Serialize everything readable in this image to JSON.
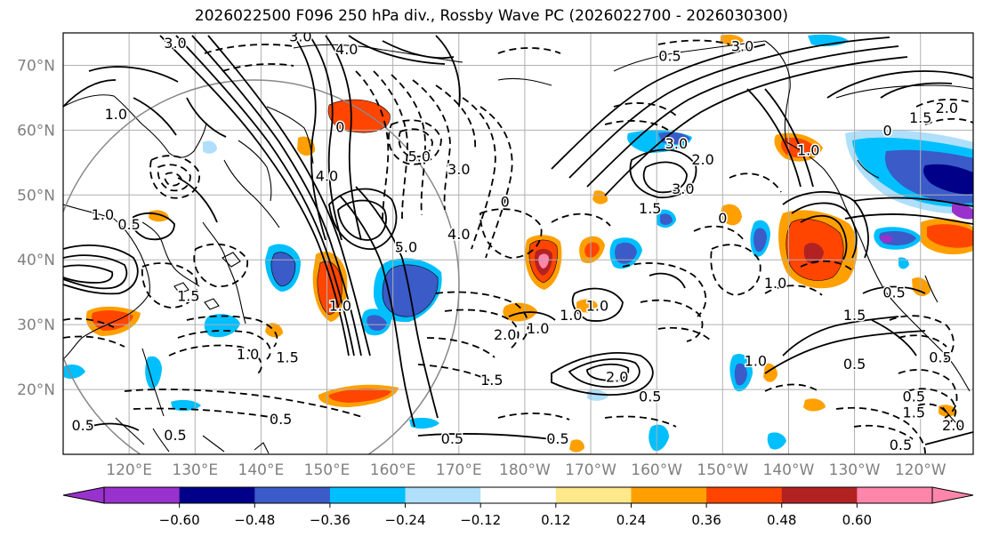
{
  "title": "2026022500 F096 250 hPa div., Rossby Wave PC (2026022700 - 2026030300)",
  "lat_labels": [
    {
      "text": "70°N",
      "lat": 70
    },
    {
      "text": "60°N",
      "lat": 60
    },
    {
      "text": "50°N",
      "lat": 50
    },
    {
      "text": "40°N",
      "lat": 40
    },
    {
      "text": "30°N",
      "lat": 30
    },
    {
      "text": "20°N",
      "lat": 20
    }
  ],
  "lon_labels": [
    {
      "text": "120°E",
      "lon": 120
    },
    {
      "text": "130°E",
      "lon": 130
    },
    {
      "text": "140°E",
      "lon": 140
    },
    {
      "text": "150°E",
      "lon": 150
    },
    {
      "text": "160°E",
      "lon": 160
    },
    {
      "text": "170°E",
      "lon": 170
    },
    {
      "text": "180°W",
      "lon": 180
    },
    {
      "text": "170°W",
      "lon": 190
    },
    {
      "text": "160°W",
      "lon": 200
    },
    {
      "text": "150°W",
      "lon": 210
    },
    {
      "text": "140°W",
      "lon": 220
    },
    {
      "text": "130°W",
      "lon": 230
    },
    {
      "text": "120°W",
      "lon": 240
    }
  ],
  "colorbar": {
    "colors": [
      "#9932cc",
      "#000088",
      "#3a5bc8",
      "#00bfff",
      "#afdffa",
      "#ffffff",
      "#ffe88a",
      "#ffa000",
      "#ff4500",
      "#b22222",
      "#ff85aa"
    ],
    "ticks": [
      "−0.60",
      "−0.48",
      "−0.36",
      "−0.24",
      "−0.12",
      "0.12",
      "0.24",
      "0.36",
      "0.48",
      "0.60"
    ]
  },
  "contour_labels": [
    {
      "text": "3.0",
      "lon": 127,
      "lat": 73.5
    },
    {
      "text": "3.0",
      "lon": 146,
      "lat": 74.5
    },
    {
      "text": "4.0",
      "lon": 153,
      "lat": 72.5
    },
    {
      "text": "0.5",
      "lon": 202,
      "lat": 71.5
    },
    {
      "text": "3.0",
      "lon": 213,
      "lat": 73
    },
    {
      "text": "1.0",
      "lon": 118,
      "lat": 62.5
    },
    {
      "text": "1.5",
      "lon": 240,
      "lat": 62
    },
    {
      "text": "2.0",
      "lon": 244,
      "lat": 63.5
    },
    {
      "text": "0",
      "lon": 152,
      "lat": 60.5
    },
    {
      "text": "5.0",
      "lon": 164,
      "lat": 56
    },
    {
      "text": "3.0",
      "lon": 170,
      "lat": 54
    },
    {
      "text": "4.0",
      "lon": 150,
      "lat": 53
    },
    {
      "text": "3.0",
      "lon": 203,
      "lat": 58
    },
    {
      "text": "2.0",
      "lon": 207,
      "lat": 55.5
    },
    {
      "text": "3.0",
      "lon": 204,
      "lat": 51
    },
    {
      "text": "1.5",
      "lon": 199,
      "lat": 48
    },
    {
      "text": "0",
      "lon": 235,
      "lat": 60
    },
    {
      "text": "1.0",
      "lon": 223,
      "lat": 57
    },
    {
      "text": "0",
      "lon": 177,
      "lat": 49
    },
    {
      "text": "1.0",
      "lon": 116,
      "lat": 47
    },
    {
      "text": "0.5",
      "lon": 120,
      "lat": 45.5
    },
    {
      "text": "4.0",
      "lon": 170,
      "lat": 44
    },
    {
      "text": "5.0",
      "lon": 162,
      "lat": 42
    },
    {
      "text": "0",
      "lon": 210,
      "lat": 46.5
    },
    {
      "text": "1.0",
      "lon": 218,
      "lat": 36.5
    },
    {
      "text": "0.5",
      "lon": 236,
      "lat": 35
    },
    {
      "text": "1.5",
      "lon": 230,
      "lat": 31.5
    },
    {
      "text": "1.0",
      "lon": 191,
      "lat": 33
    },
    {
      "text": "1.0",
      "lon": 187,
      "lat": 31.5
    },
    {
      "text": "1.5",
      "lon": 129,
      "lat": 34.5
    },
    {
      "text": "1.0",
      "lon": 152,
      "lat": 33
    },
    {
      "text": "2.0",
      "lon": 177,
      "lat": 28.5
    },
    {
      "text": "1.0",
      "lon": 138,
      "lat": 25.5
    },
    {
      "text": "1.5",
      "lon": 144,
      "lat": 25
    },
    {
      "text": "1.0",
      "lon": 182,
      "lat": 29.5
    },
    {
      "text": "1.5",
      "lon": 175,
      "lat": 21.5
    },
    {
      "text": "2.0",
      "lon": 194,
      "lat": 22
    },
    {
      "text": "0.5",
      "lon": 199,
      "lat": 19
    },
    {
      "text": "1.0",
      "lon": 215,
      "lat": 24.5
    },
    {
      "text": "0.5",
      "lon": 230,
      "lat": 24
    },
    {
      "text": "0.5",
      "lon": 243,
      "lat": 25
    },
    {
      "text": "1.5",
      "lon": 239,
      "lat": 16.5
    },
    {
      "text": "2.0",
      "lon": 245,
      "lat": 14.5
    },
    {
      "text": "0.5",
      "lon": 239,
      "lat": 19
    },
    {
      "text": "0.5",
      "lon": 127,
      "lat": 13
    },
    {
      "text": "0.5",
      "lon": 143,
      "lat": 15.5
    },
    {
      "text": "0.5",
      "lon": 169,
      "lat": 12.5
    },
    {
      "text": "0.5",
      "lon": 185,
      "lat": 12.5
    },
    {
      "text": "0.5",
      "lon": 237,
      "lat": 11.5
    },
    {
      "text": "0.5",
      "lon": 113,
      "lat": 14.5
    }
  ]
}
